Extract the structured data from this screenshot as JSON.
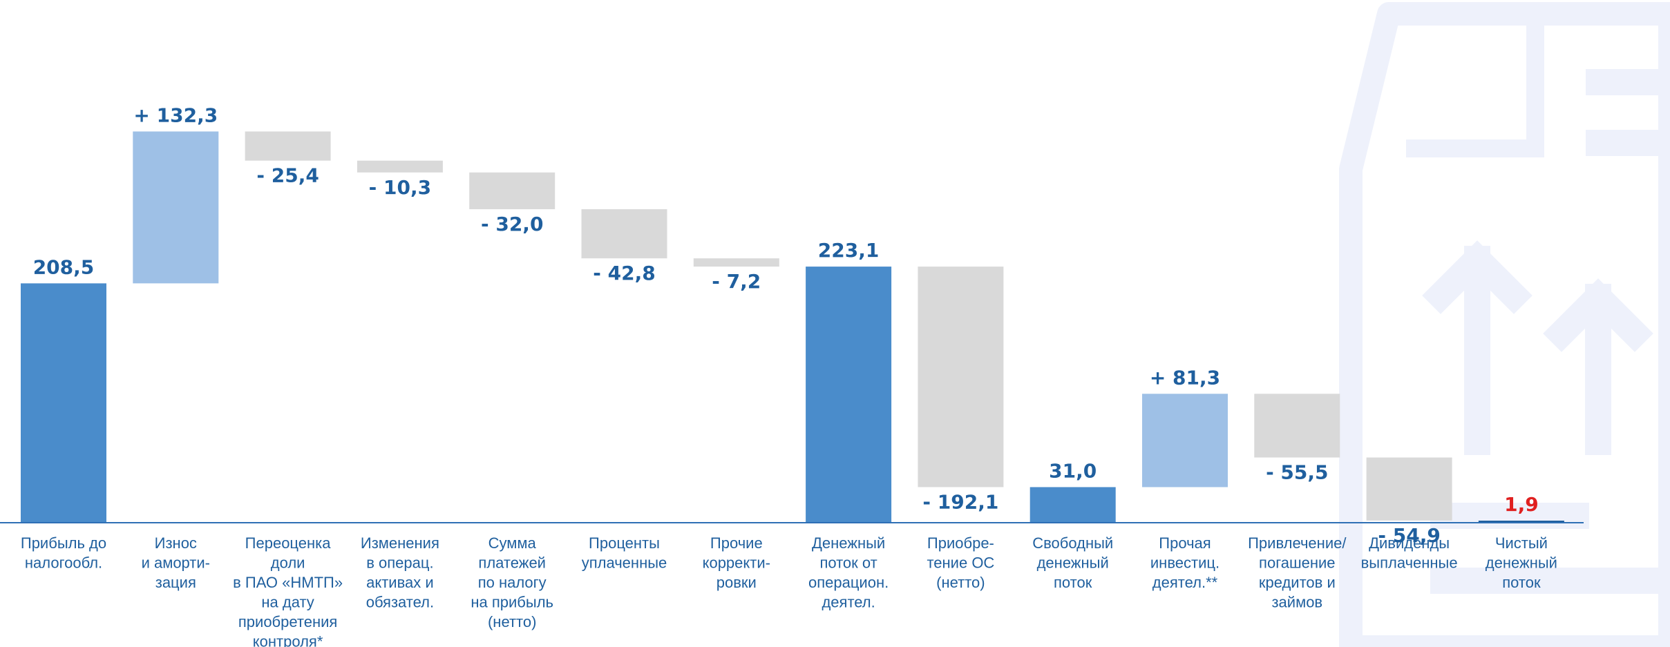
{
  "colors": {
    "total": "#4a8ccb",
    "increase": "#9ec0e6",
    "decrease": "#d9d9d9",
    "label_blue": "#1f5f9e",
    "label_red": "#e02020",
    "axis": "#2e6fb5",
    "bg_icon": "#eef1fb"
  },
  "background_icon": "document-with-up-arrows-icon",
  "chart_data": {
    "type": "waterfall",
    "title": "",
    "xlabel": "",
    "ylabel": "",
    "ylim": [
      0,
      380
    ],
    "bars": [
      {
        "kind": "total",
        "value": 208.5,
        "label": "208,5",
        "category": [
          "Прибыль до",
          "налогообл."
        ]
      },
      {
        "kind": "increase",
        "value": 132.3,
        "label": "+ 132,3",
        "category": [
          "Износ",
          "и аморти-",
          "зация"
        ]
      },
      {
        "kind": "decrease",
        "value": -25.4,
        "label": "- 25,4",
        "category": [
          "Переоценка",
          "доли",
          "в ПАО «НМТП»",
          "на дату",
          "приобретения",
          "контроля*"
        ]
      },
      {
        "kind": "decrease",
        "value": -10.3,
        "label": "- 10,3",
        "category": [
          "Изменения",
          "в операц.",
          "активах и",
          "обязател."
        ]
      },
      {
        "kind": "decrease",
        "value": -32.0,
        "label": "- 32,0",
        "category": [
          "Сумма",
          "платежей",
          "по налогу",
          "на прибыль",
          "(нетто)"
        ]
      },
      {
        "kind": "decrease",
        "value": -42.8,
        "label": "- 42,8",
        "category": [
          "Проценты",
          "уплаченные"
        ]
      },
      {
        "kind": "decrease",
        "value": -7.2,
        "label": "- 7,2",
        "category": [
          "Прочие",
          "корректи-",
          "ровки"
        ]
      },
      {
        "kind": "total",
        "value": 223.1,
        "label": "223,1",
        "category": [
          "Денежный",
          "поток от",
          "операцион.",
          "деятел."
        ]
      },
      {
        "kind": "decrease",
        "value": -192.1,
        "label": "- 192,1",
        "category": [
          "Приобре-",
          "тение ОС",
          "(нетто)"
        ]
      },
      {
        "kind": "total",
        "value": 31.0,
        "label": "31,0",
        "category": [
          "Свободный",
          "денежный",
          "поток"
        ]
      },
      {
        "kind": "increase",
        "value": 81.3,
        "label": "+ 81,3",
        "category": [
          "Прочая",
          "инвестиц.",
          "деятел.**"
        ]
      },
      {
        "kind": "decrease",
        "value": -55.5,
        "label": "- 55,5",
        "category": [
          "Привлечение/",
          "погашение",
          "кредитов и",
          "займов"
        ]
      },
      {
        "kind": "decrease",
        "value": -54.9,
        "label": "- 54,9",
        "category": [
          "Дивиденды",
          "выплаченные"
        ]
      },
      {
        "kind": "total",
        "value": 1.9,
        "label": "1,9",
        "category": [
          "Чистый",
          "денежный",
          "поток"
        ],
        "label_color": "red"
      }
    ]
  }
}
